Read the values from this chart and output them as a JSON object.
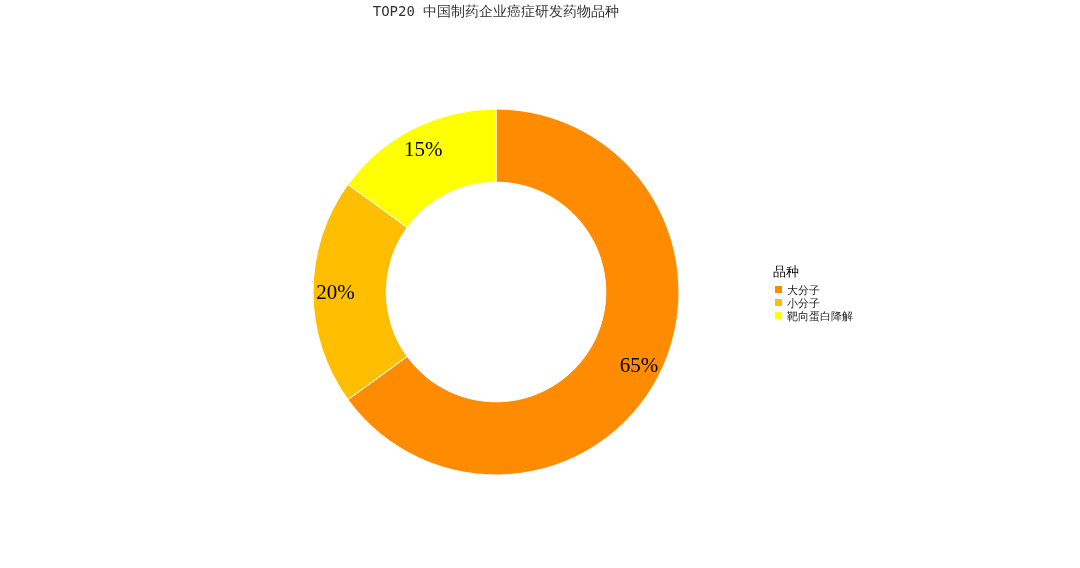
{
  "chart_data": {
    "type": "donut",
    "title": "TOP20 中国制药企业癌症研发药物品种",
    "legend_title": "品种",
    "categories": [
      "大分子",
      "小分子",
      "靶向蛋白降解"
    ],
    "values": [
      65,
      20,
      15
    ],
    "colors": [
      "#ff8c00",
      "#ffbf00",
      "#ffff00"
    ],
    "value_labels": [
      "65%",
      "20%",
      "15%"
    ],
    "legend": "right"
  }
}
